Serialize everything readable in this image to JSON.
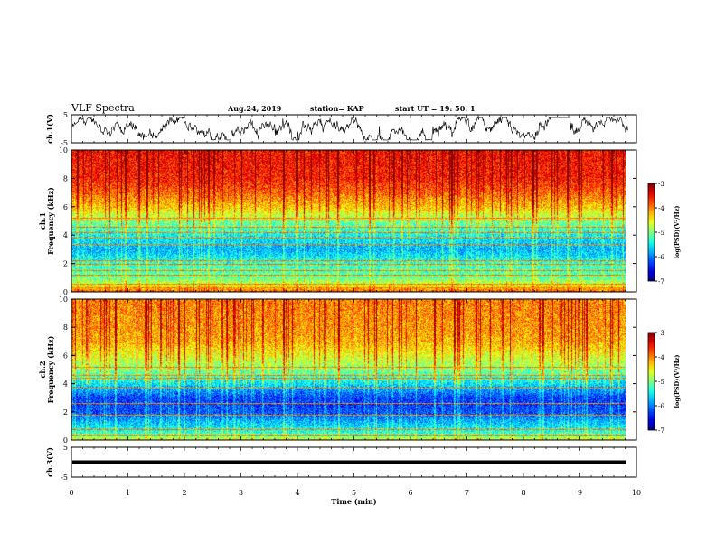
{
  "header": {
    "title": "VLF Spectra",
    "date": "Aug.24, 2019",
    "station": "station= KAP",
    "start": "start  UT =   19: 50: 1"
  },
  "chart_data": [
    {
      "type": "line",
      "panel": "ch1-waveform",
      "ylabel": "ch.1(V)",
      "ylim": [
        -5,
        5
      ],
      "yticks": [
        "5",
        "-5"
      ],
      "xlim": [
        0,
        10
      ],
      "series": [
        {
          "values_description": "noisy waveform between about -4 and 4 V",
          "amplitude": 4
        }
      ]
    },
    {
      "type": "heatmap",
      "panel": "ch1-spectrogram",
      "ylabel": "ch.1\nFrequency (kHz)",
      "ylim": [
        0,
        10
      ],
      "yticks": [
        "0",
        "2",
        "4",
        "6",
        "8",
        "10"
      ],
      "xlim": [
        0,
        10
      ],
      "data_end_min": 9.8,
      "colorbar": {
        "label": "log(PSD)(V²/Hz)",
        "range": [
          -7,
          -3
        ],
        "ticks": [
          "-3",
          "-4",
          "-5",
          "-6",
          "-7"
        ]
      },
      "profile": [
        {
          "f": 0.0,
          "v": -3.8
        },
        {
          "f": 0.5,
          "v": -4.6
        },
        {
          "f": 1.0,
          "v": -5.1
        },
        {
          "f": 2.0,
          "v": -5.3
        },
        {
          "f": 3.0,
          "v": -5.8
        },
        {
          "f": 4.0,
          "v": -5.5
        },
        {
          "f": 5.0,
          "v": -5.0
        },
        {
          "f": 6.0,
          "v": -4.3
        },
        {
          "f": 7.0,
          "v": -3.9
        },
        {
          "f": 8.0,
          "v": -3.6
        },
        {
          "f": 10.0,
          "v": -3.5
        }
      ],
      "lines_khz": [
        0.3,
        0.6,
        1.2,
        1.5,
        2.0,
        2.2,
        3.4,
        3.8,
        4.2,
        4.6,
        5.1,
        5.2
      ]
    },
    {
      "type": "heatmap",
      "panel": "ch2-spectrogram",
      "ylabel": "ch.2\nFrequency (kHz)",
      "ylim": [
        0,
        10
      ],
      "yticks": [
        "0",
        "2",
        "4",
        "6",
        "8",
        "10"
      ],
      "xlim": [
        0,
        10
      ],
      "data_end_min": 9.8,
      "colorbar": {
        "label": "log(PSD)(V²/Hz)",
        "range": [
          -7,
          -3
        ],
        "ticks": [
          "-3",
          "-4",
          "-5",
          "-6",
          "-7"
        ]
      },
      "profile": [
        {
          "f": 0.0,
          "v": -4.6
        },
        {
          "f": 0.5,
          "v": -5.3
        },
        {
          "f": 1.0,
          "v": -5.6
        },
        {
          "f": 2.0,
          "v": -6.2
        },
        {
          "f": 3.0,
          "v": -6.3
        },
        {
          "f": 4.0,
          "v": -5.6
        },
        {
          "f": 5.0,
          "v": -5.0
        },
        {
          "f": 6.0,
          "v": -4.6
        },
        {
          "f": 7.0,
          "v": -4.2
        },
        {
          "f": 8.0,
          "v": -4.1
        },
        {
          "f": 10.0,
          "v": -4.0
        }
      ],
      "lines_khz": [
        0.4,
        0.8,
        1.8,
        2.6,
        3.7,
        4.4,
        4.6,
        5.2
      ]
    },
    {
      "type": "line",
      "panel": "ch3-waveform",
      "ylabel": "ch.3(V)",
      "ylim": [
        -5,
        5
      ],
      "yticks": [
        "5",
        "-5"
      ],
      "xlim": [
        0,
        10
      ],
      "xlabel": "Time (min)",
      "xticks": [
        "0",
        "1",
        "2",
        "3",
        "4",
        "5",
        "6",
        "7",
        "8",
        "9",
        "10"
      ],
      "series": [
        {
          "values_description": "flat thick line near 0 V",
          "level": 0
        }
      ]
    }
  ]
}
